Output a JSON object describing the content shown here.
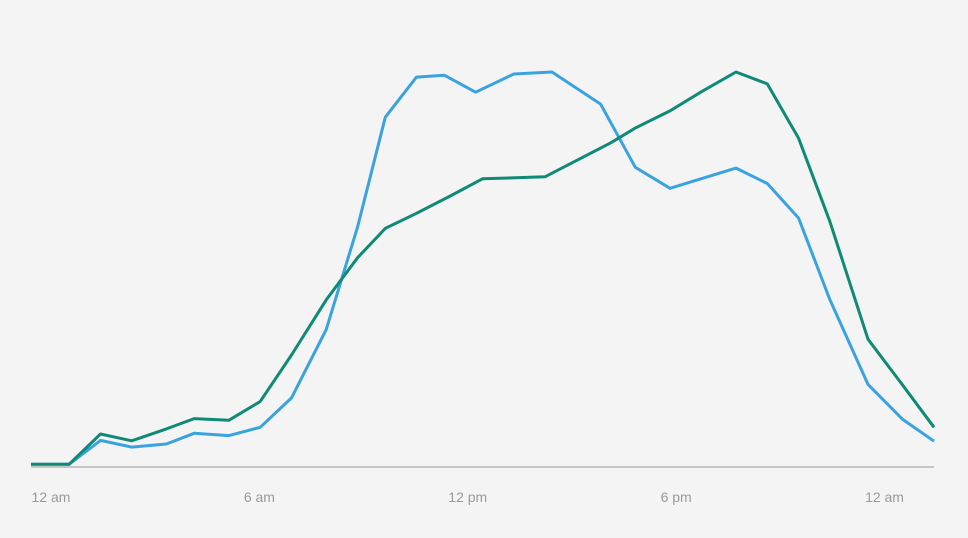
{
  "chart_data": {
    "type": "line",
    "title": "",
    "xlabel": "",
    "ylabel": "",
    "x_tick_labels": [
      {
        "x": 0,
        "label": "12 am"
      },
      {
        "x": 6,
        "label": "6 am"
      },
      {
        "x": 12,
        "label": "12 pm"
      },
      {
        "x": 18,
        "label": "6 pm"
      },
      {
        "x": 24,
        "label": "12 am"
      }
    ],
    "xlim": [
      0,
      26
    ],
    "ylim": [
      0,
      100
    ],
    "grid": false,
    "legend": "none",
    "series": [
      {
        "color": "#3aa3df",
        "x": [
          0,
          1.1,
          2,
          2.9,
          3.9,
          4.7,
          5.7,
          6.6,
          7.5,
          8.5,
          9.4,
          10.2,
          11.1,
          11.9,
          12.8,
          13.9,
          15,
          16.4,
          17.4,
          18.4,
          20.3,
          21.2,
          22.1,
          23,
          24.1,
          25.1,
          26
        ],
        "y": [
          0.7,
          0.7,
          6.7,
          5,
          5.8,
          8.5,
          7.9,
          10,
          17.4,
          34.6,
          60.4,
          88.1,
          98.2,
          98.7,
          94.4,
          99,
          99.5,
          91.4,
          75.5,
          70.2,
          75.3,
          71.4,
          62.7,
          42.2,
          20.8,
          12,
          6.5
        ]
      },
      {
        "color": "#0e8a75",
        "x": [
          0,
          1.1,
          2,
          2.9,
          3.9,
          4.7,
          5.7,
          6.6,
          7.5,
          8.5,
          9.4,
          10.2,
          11.1,
          12.1,
          13,
          14.8,
          16.7,
          17.4,
          18.4,
          19.3,
          20.3,
          21.2,
          22.1,
          23,
          24.1,
          25.1,
          26
        ],
        "y": [
          0.7,
          0.7,
          8.3,
          6.6,
          9.6,
          12.2,
          11.8,
          16.5,
          28.2,
          42.1,
          52.7,
          60.1,
          63.9,
          68.4,
          72.6,
          73.1,
          81.7,
          85.4,
          89.7,
          94.5,
          99.5,
          96.5,
          82.8,
          61.9,
          32.2,
          20.6,
          10
        ]
      }
    ]
  }
}
